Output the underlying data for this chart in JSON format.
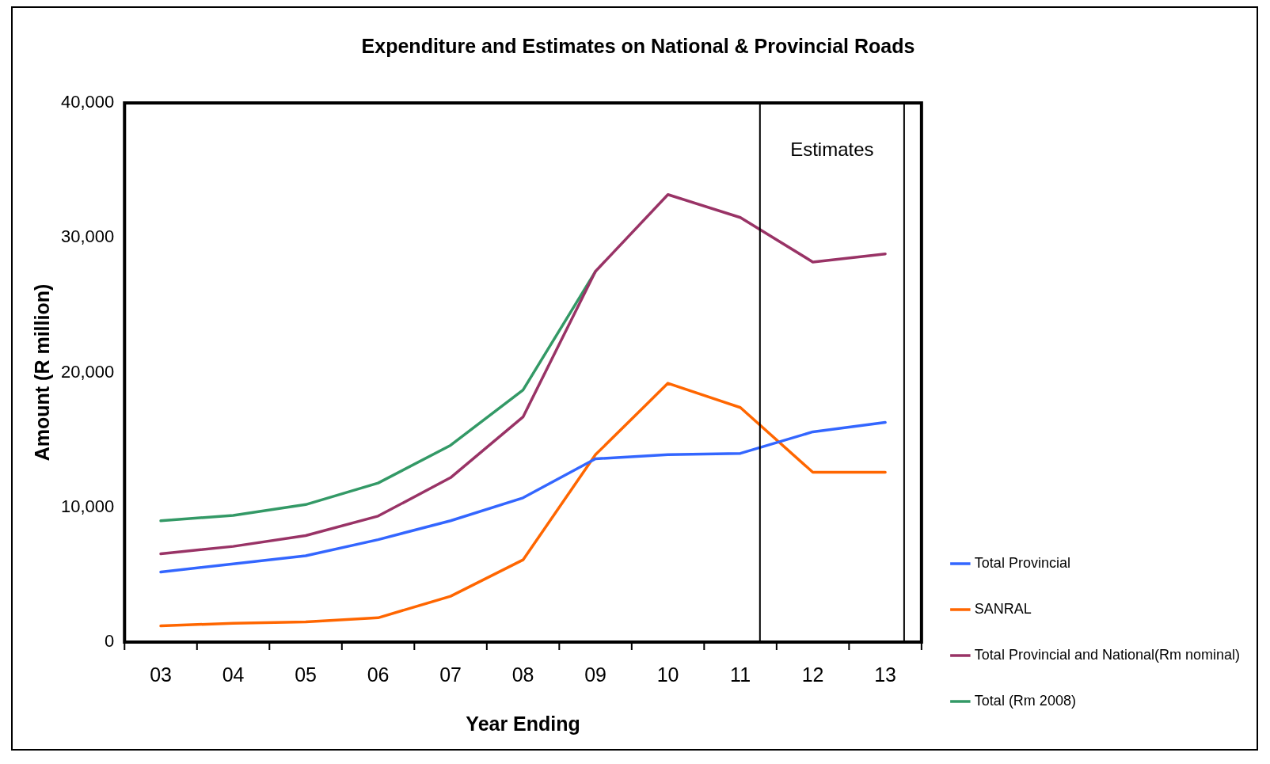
{
  "chart_data": {
    "type": "line",
    "title": "Expenditure and Estimates on National & Provincial Roads",
    "xlabel": "Year Ending",
    "ylabel": "Amount (R million)",
    "x": [
      3,
      4,
      5,
      6,
      7,
      8,
      9,
      10,
      11,
      12,
      13
    ],
    "xlim": [
      2.5,
      13.5
    ],
    "xticks": [
      {
        "value": 3,
        "label": "03"
      },
      {
        "value": 4,
        "label": "04"
      },
      {
        "value": 5,
        "label": "05"
      },
      {
        "value": 6,
        "label": "06"
      },
      {
        "value": 7,
        "label": "07"
      },
      {
        "value": 8,
        "label": "08"
      },
      {
        "value": 9,
        "label": "09"
      },
      {
        "value": 10,
        "label": "10"
      },
      {
        "value": 11,
        "label": "11"
      },
      {
        "value": 12,
        "label": "12"
      },
      {
        "value": 13,
        "label": "13"
      }
    ],
    "ylim": [
      0,
      40000
    ],
    "yticks": [
      {
        "value": 0,
        "label": "0"
      },
      {
        "value": 10000,
        "label": "10,000"
      },
      {
        "value": 20000,
        "label": "20,000"
      },
      {
        "value": 30000,
        "label": "30,000"
      },
      {
        "value": 40000,
        "label": "40,000"
      }
    ],
    "series": [
      {
        "name": "Total Provincial",
        "color": "#3366ff",
        "values": [
          5200,
          5800,
          6400,
          7600,
          9000,
          10700,
          13600,
          13900,
          14000,
          15600,
          16300
        ]
      },
      {
        "name": "SANRAL",
        "color": "#ff6600",
        "values": [
          1200,
          1400,
          1500,
          1800,
          3400,
          6100,
          13900,
          19200,
          17400,
          12600,
          12600
        ]
      },
      {
        "name": "Total Provincial and National(Rm nominal)",
        "color": "#993366",
        "values": [
          6550,
          7100,
          7900,
          9350,
          12200,
          16700,
          27500,
          33200,
          31500,
          28200,
          28800
        ]
      },
      {
        "name": "Total (Rm 2008)",
        "color": "#339966",
        "values": [
          9000,
          9400,
          10200,
          11800,
          14600,
          18700,
          27500,
          null,
          null,
          null,
          null
        ]
      }
    ],
    "ref_lines": [
      {
        "axis": "x",
        "value": 11.27,
        "color": "#000000"
      },
      {
        "axis": "x",
        "value": 13.26,
        "color": "#000000"
      }
    ],
    "annotations": [
      "Estimates"
    ],
    "grid": false,
    "legend": "bottom right",
    "marker": "none",
    "line_style": "solid"
  }
}
